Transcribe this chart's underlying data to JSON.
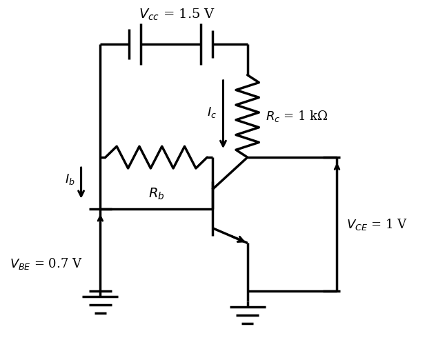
{
  "bg_color": "#ffffff",
  "line_color": "#000000",
  "line_width": 2.5,
  "fig_width": 6.16,
  "fig_height": 4.93,
  "labels": {
    "vcc": "$V_{cc}$ = 1.5 V",
    "rc": "$R_c$ = 1 kΩ",
    "rb": "$R_b$",
    "ic": "$I_c$",
    "ib": "$I_b$",
    "vbe": "$V_{BE}$ = 0.7 V",
    "vce": "$V_{CE}$ = 1 V"
  }
}
